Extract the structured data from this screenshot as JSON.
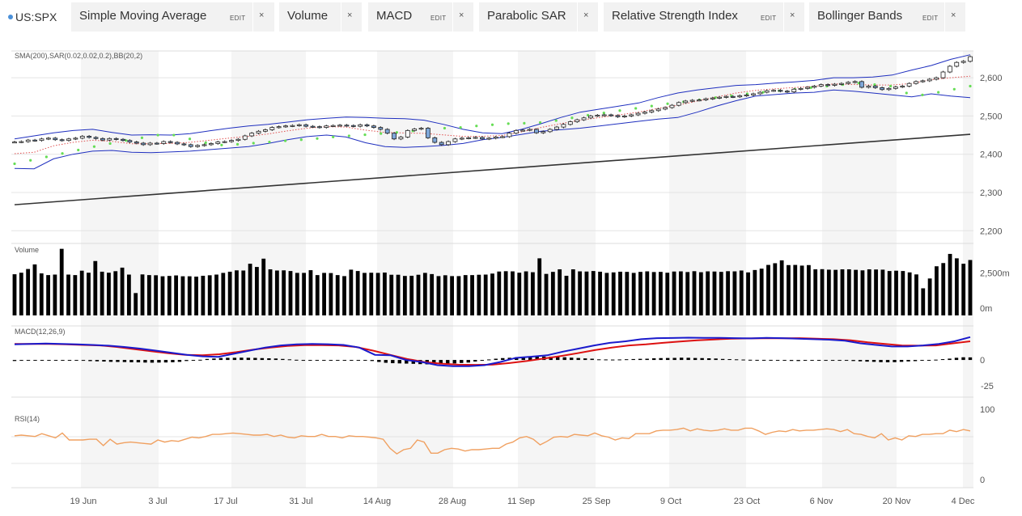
{
  "toolbar": {
    "ticker": "US:SPX",
    "indicators": [
      {
        "label": "Simple Moving Average",
        "edit": "EDIT"
      },
      {
        "label": "Volume"
      },
      {
        "label": "MACD",
        "edit": "EDIT"
      },
      {
        "label": "Parabolic SAR"
      },
      {
        "label": "Relative Strength Index",
        "edit": "EDIT"
      },
      {
        "label": "Bollinger Bands",
        "edit": "EDIT"
      }
    ],
    "close_glyph": "×"
  },
  "colors": {
    "price_candle_up": "#ffffff",
    "price_candle_down": "#7fa7d9",
    "sma": "#333333",
    "bollinger": "#1f2fbf",
    "sar": "#66dd55",
    "ema_dotted": "#e05050",
    "macd_line": "#1a1acc",
    "signal_line": "#dd1111",
    "rsi": "#f0a060",
    "volume": "#000000",
    "band_shade": "#f5f5f5"
  },
  "x_axis": [
    "19 Jun",
    "3 Jul",
    "17 Jul",
    "31 Jul",
    "14 Aug",
    "28 Aug",
    "11 Sep",
    "25 Sep",
    "9 Oct",
    "23 Oct",
    "6 Nov",
    "20 Nov",
    "4 Dec"
  ],
  "chart_data": [
    {
      "type": "candlestick",
      "title": "SMA(200),SAR(0.02,0.02,0.2),BB(20,2)",
      "y_ticks": [
        "2,600",
        "2,500",
        "2,400",
        "2,300",
        "2,200"
      ],
      "ylim": [
        2190,
        2670
      ],
      "close": [
        2432,
        2433,
        2437,
        2436,
        2440,
        2442,
        2438,
        2436,
        2440,
        2442,
        2447,
        2444,
        2441,
        2437,
        2441,
        2439,
        2436,
        2432,
        2429,
        2425,
        2429,
        2428,
        2433,
        2431,
        2427,
        2425,
        2420,
        2423,
        2425,
        2428,
        2432,
        2433,
        2436,
        2439,
        2448,
        2455,
        2460,
        2464,
        2470,
        2472,
        2474,
        2475,
        2477,
        2473,
        2472,
        2470,
        2474,
        2475,
        2476,
        2475,
        2473,
        2477,
        2474,
        2470,
        2465,
        2455,
        2440,
        2445,
        2462,
        2466,
        2468,
        2443,
        2431,
        2425,
        2433,
        2440,
        2442,
        2443,
        2444,
        2440,
        2442,
        2445,
        2446,
        2455,
        2462,
        2463,
        2465,
        2456,
        2459,
        2465,
        2471,
        2478,
        2485,
        2490,
        2495,
        2500,
        2502,
        2503,
        2501,
        2498,
        2500,
        2503,
        2507,
        2510,
        2514,
        2518,
        2522,
        2528,
        2535,
        2539,
        2541,
        2542,
        2545,
        2547,
        2549,
        2551,
        2550,
        2553,
        2555,
        2558,
        2562,
        2566,
        2567,
        2565,
        2563,
        2570,
        2572,
        2575,
        2578,
        2582,
        2580,
        2583,
        2585,
        2588,
        2590,
        2575,
        2578,
        2574,
        2569,
        2572,
        2576,
        2578,
        2585,
        2590,
        2592,
        2596,
        2600,
        2615,
        2630,
        2640,
        2643,
        2655
      ],
      "sma200": [
        [
          0,
          2268
        ],
        [
          141,
          2452
        ]
      ],
      "bb_upper": [
        2440,
        2448,
        2456,
        2462,
        2465,
        2457,
        2450,
        2451,
        2450,
        2454,
        2461,
        2468,
        2474,
        2478,
        2484,
        2490,
        2494,
        2497,
        2496,
        2494,
        2493,
        2489,
        2478,
        2465,
        2456,
        2454,
        2465,
        2480,
        2496,
        2510,
        2518,
        2526,
        2534,
        2548,
        2560,
        2568,
        2574,
        2580,
        2582,
        2586,
        2589,
        2593,
        2600,
        2600,
        2602,
        2607,
        2620,
        2632,
        2648,
        2660
      ],
      "bb_lower": [
        2363,
        2362,
        2388,
        2400,
        2408,
        2410,
        2405,
        2404,
        2406,
        2408,
        2412,
        2416,
        2420,
        2428,
        2438,
        2446,
        2450,
        2445,
        2430,
        2420,
        2418,
        2420,
        2423,
        2428,
        2438,
        2444,
        2452,
        2460,
        2464,
        2468,
        2474,
        2480,
        2486,
        2492,
        2496,
        2510,
        2526,
        2540,
        2552,
        2556,
        2560,
        2562,
        2568,
        2565,
        2560,
        2555,
        2550,
        2558,
        2552,
        2548
      ],
      "sar": [
        2375,
        2384,
        2393,
        2402,
        2411,
        2420,
        2428,
        2436,
        2443,
        2450,
        2450,
        2440,
        2430,
        2424,
        2426,
        2429,
        2432,
        2435,
        2438,
        2441,
        2445,
        2448,
        2451,
        2454,
        2457,
        2461,
        2464,
        2468,
        2470,
        2474,
        2477,
        2480,
        2481,
        2483,
        2488,
        2495,
        2502,
        2508,
        2514,
        2520,
        2526,
        2532,
        2537,
        2542,
        2548,
        2553,
        2558,
        2562,
        2566,
        2570,
        2574,
        2578,
        2582,
        2586,
        2582,
        2578,
        2560,
        2555,
        2562,
        2570,
        2578
      ]
    },
    {
      "type": "bar",
      "title": "Volume",
      "y_ticks": [
        "2,500m",
        "0m"
      ],
      "ylim": [
        0,
        4200
      ],
      "values": [
        2430,
        2520,
        2740,
        3010,
        2480,
        2380,
        2410,
        3930,
        2410,
        2380,
        2640,
        2520,
        3210,
        2580,
        2520,
        2610,
        2820,
        2410,
        1320,
        2420,
        2380,
        2370,
        2310,
        2330,
        2360,
        2310,
        2310,
        2290,
        2340,
        2370,
        2410,
        2510,
        2580,
        2660,
        2650,
        3050,
        2860,
        3350,
        2720,
        2650,
        2660,
        2620,
        2510,
        2510,
        2670,
        2380,
        2510,
        2500,
        2380,
        2320,
        2700,
        2620,
        2510,
        2520,
        2510,
        2530,
        2400,
        2400,
        2330,
        2340,
        2400,
        2510,
        2440,
        2320,
        2370,
        2320,
        2320,
        2380,
        2380,
        2400,
        2410,
        2470,
        2590,
        2610,
        2600,
        2520,
        2600,
        2550,
        3370,
        2450,
        2570,
        2720,
        2340,
        2720,
        2600,
        2590,
        2620,
        2580,
        2510,
        2540,
        2580,
        2570,
        2510,
        2570,
        2600,
        2560,
        2570,
        2520,
        2590,
        2600,
        2560,
        2610,
        2550,
        2600,
        2590,
        2570,
        2610,
        2600,
        2650,
        2540,
        2680,
        2760,
        2980,
        3080,
        3250,
        2970,
        2980,
        2940,
        2970,
        2720,
        2730,
        2700,
        2690,
        2720,
        2720,
        2690,
        2660,
        2720,
        2710,
        2700,
        2620,
        2640,
        2620,
        2540,
        2420,
        1600,
        2180,
        2900,
        3090,
        3630,
        3370,
        3050,
        3270
      ]
    },
    {
      "type": "line",
      "title": "MACD(12,26,9)",
      "y_ticks": [
        "0",
        "-25"
      ],
      "ylim": [
        -35,
        32
      ],
      "macd": [
        15,
        15.5,
        15.8,
        15.5,
        15,
        14.5,
        13.8,
        12.5,
        11,
        9,
        7,
        5,
        3.5,
        3,
        6,
        9,
        12,
        14,
        15,
        15.5,
        15.2,
        14.5,
        12,
        5,
        4.5,
        0,
        -2,
        -5,
        -6,
        -6,
        -5,
        -2,
        2,
        3.2,
        4.5,
        8,
        11,
        14,
        16.5,
        18,
        20,
        21,
        21.2,
        21.5,
        21.3,
        21.3,
        21,
        20.8,
        21.3,
        21,
        20.5,
        20,
        19.5,
        18.5,
        16,
        14.5,
        13,
        13,
        14,
        15.5,
        18,
        22
      ],
      "signal": [
        15.5,
        15.5,
        15.5,
        15,
        14.5,
        14,
        12.5,
        10.5,
        8.5,
        6.5,
        5,
        4.5,
        5.5,
        7.5,
        10,
        12,
        13.5,
        14.2,
        14.3,
        14,
        12.5,
        9,
        5,
        1,
        -2,
        -3.5,
        -4.5,
        -4.7,
        -4.5,
        -3,
        -1,
        1.3,
        3.8,
        6.5,
        9.5,
        12,
        14,
        15,
        16.5,
        17.8,
        19,
        19.8,
        20.5,
        20.8,
        20.9,
        20.9,
        21,
        20.5,
        20,
        19,
        17,
        15.5,
        14,
        13.8,
        14,
        16,
        18
      ],
      "histogram": [
        -1,
        -0.8,
        -0.7,
        -0.5,
        -0.4,
        -0.5,
        -0.4,
        -0.3,
        -0.4,
        -0.6,
        -0.8,
        -1.1,
        -1.3,
        -1.5,
        -1.8,
        -1.9,
        -2,
        -2.2,
        -2.3,
        -2.5,
        -2.6,
        -2.5,
        -2.4,
        -2.2,
        -1.8,
        -1,
        -0.5,
        0.2,
        1,
        1.4,
        1.9,
        2.1,
        2.1,
        2.2,
        2.1,
        2,
        1.8,
        1.6,
        1.4,
        1,
        0.6,
        0.2,
        -0.3,
        -0.5,
        -0.4,
        -0.3,
        -0.2,
        -0.2,
        -0.2,
        -0.1,
        -0.2,
        -0.3,
        -1,
        -1.9,
        -2.7,
        -3.1,
        -3.3,
        -3.5,
        -3.7,
        -4,
        -4.2,
        -4.4,
        -4.1,
        -3.7,
        -3.3,
        -2.9,
        -2.5,
        -1.5,
        -0.8,
        0.5,
        1.2,
        1.8,
        2.1,
        2.5,
        2.8,
        3,
        3.2,
        3.3,
        3.2,
        3,
        2.6,
        2.2,
        1.9,
        1.5,
        1.2,
        0.6,
        0.5,
        0.4,
        0.5,
        0.7,
        0.9,
        1.1,
        1.2,
        1.6,
        1.8,
        1.9,
        2,
        2.2,
        2.1,
        1.9,
        1.8,
        1.6,
        1.4,
        1,
        0.8,
        0.6,
        0.4,
        0.2,
        0.1,
        0.1,
        0.1,
        -0.3,
        -0.6,
        -0.9,
        -1,
        -0.5,
        -0.2,
        -0.1,
        -0.1,
        -0.1,
        -0.2,
        -0.6,
        -1,
        -1.3,
        -1.6,
        -1.8,
        -2.1,
        -2.2,
        -2.1,
        -1.8,
        -1.4,
        -1.1,
        -0.7,
        -0.3,
        0.3,
        0.8,
        1.3,
        2.1,
        2.6,
        2.5
      ]
    },
    {
      "type": "line",
      "title": "RSI(14)",
      "y_ticks": [
        "100",
        "0"
      ],
      "ylim": [
        0,
        100
      ],
      "values": [
        63,
        64,
        63,
        62,
        66,
        63,
        60,
        67,
        57,
        57,
        57,
        58,
        58,
        49,
        58,
        51,
        53,
        54,
        53,
        52,
        51,
        57,
        54,
        56,
        55,
        58,
        61,
        60,
        62,
        65,
        65,
        66,
        67,
        66,
        65,
        64,
        64,
        65,
        62,
        64,
        61,
        60,
        63,
        62,
        62,
        65,
        62,
        62,
        60,
        63,
        62,
        62,
        61,
        60,
        58,
        45,
        37,
        43,
        45,
        57,
        54,
        38,
        38,
        43,
        45,
        44,
        41,
        43,
        43,
        44,
        45,
        45,
        51,
        54,
        60,
        62,
        58,
        50,
        55,
        61,
        62,
        61,
        65,
        64,
        63,
        67,
        63,
        61,
        57,
        60,
        59,
        66,
        66,
        66,
        70,
        71,
        71,
        72,
        74,
        70,
        73,
        71,
        70,
        71,
        73,
        71,
        71,
        74,
        74,
        70,
        65,
        68,
        70,
        69,
        72,
        70,
        71,
        71,
        72,
        73,
        72,
        69,
        72,
        66,
        65,
        62,
        60,
        66,
        57,
        60,
        57,
        63,
        62,
        65,
        65,
        66,
        66,
        71,
        69,
        72,
        70
      ]
    }
  ]
}
